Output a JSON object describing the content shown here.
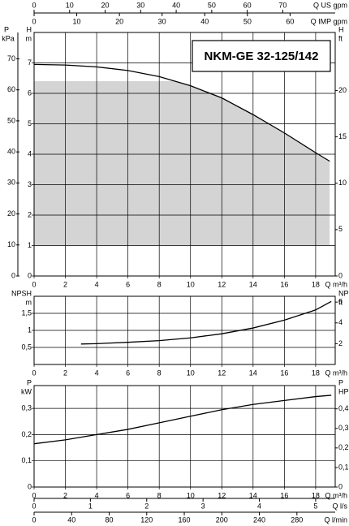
{
  "chart_data": [
    {
      "type": "line",
      "title": "NKM-GE 32-125/142",
      "x_label": "Q m³/h",
      "xlim": [
        0,
        19.25
      ],
      "xticks": [
        0,
        2,
        4,
        6,
        8,
        10,
        12,
        14,
        16,
        18
      ],
      "y_label": "H",
      "y_unit": "m",
      "ylim": [
        0,
        8
      ],
      "yticks": [
        0,
        1,
        2,
        3,
        4,
        5,
        6,
        7
      ],
      "y2_label": "H",
      "y2_unit": "ft",
      "y2lim": [
        0,
        26.25
      ],
      "y2ticks": [
        0,
        5,
        10,
        15,
        20
      ],
      "y3_label": "P",
      "y3_unit": "kPa",
      "y3lim": [
        0,
        78.5
      ],
      "y3ticks": [
        0,
        10,
        20,
        30,
        40,
        50,
        60,
        70
      ],
      "x": [
        0,
        2,
        4,
        6,
        8,
        10,
        12,
        14,
        16,
        18,
        18.9
      ],
      "series": [
        {
          "color": "#000000",
          "values": [
            6.95,
            6.93,
            6.87,
            6.75,
            6.55,
            6.25,
            5.85,
            5.3,
            4.7,
            4.05,
            3.77
          ]
        }
      ],
      "shaded_region": {
        "x": [
          0,
          18.9
        ],
        "y": [
          1,
          6.4
        ],
        "color": "#d4d4d4"
      },
      "x2_axes": [
        {
          "label": "Q US gpm",
          "lim": [
            0,
            84.76
          ],
          "ticks": [
            0,
            10,
            20,
            30,
            40,
            50,
            60,
            70
          ]
        },
        {
          "label": "Q IMP gpm",
          "lim": [
            0,
            70.58
          ],
          "ticks": [
            0,
            10,
            20,
            30,
            40,
            50,
            60
          ]
        }
      ]
    },
    {
      "type": "line",
      "x_label": "Q m³/h",
      "xlim": [
        0,
        19.25
      ],
      "xticks": [
        0,
        2,
        4,
        6,
        8,
        10,
        12,
        14,
        16,
        18
      ],
      "y_label": "NPSH",
      "y_unit": "m",
      "ylim": [
        0,
        2
      ],
      "yticks": [
        {
          "value": 0.5,
          "label": "0,5"
        },
        1,
        {
          "value": 1.5,
          "label": "1,5"
        }
      ],
      "y2_label": "NPSH",
      "y2_unit": "ft",
      "y2lim": [
        0,
        6.56
      ],
      "y2ticks": [
        2,
        4,
        6
      ],
      "x": [
        3,
        4,
        6,
        8,
        10,
        12,
        14,
        16,
        18,
        19
      ],
      "series": [
        {
          "color": "#000000",
          "values": [
            0.6,
            0.61,
            0.65,
            0.7,
            0.78,
            0.9,
            1.07,
            1.3,
            1.6,
            1.85
          ]
        }
      ]
    },
    {
      "type": "line",
      "x_label": "Q m³/h",
      "xlim": [
        0,
        19.25
      ],
      "xticks": [
        0,
        2,
        4,
        6,
        8,
        10,
        12,
        14,
        16,
        18
      ],
      "y_label": "P",
      "y_unit": "kW",
      "ylim": [
        0,
        0.387
      ],
      "yticks": [
        0,
        {
          "value": 0.1,
          "label": "0,1"
        },
        {
          "value": 0.2,
          "label": "0,2"
        },
        {
          "value": 0.3,
          "label": "0,3"
        }
      ],
      "y2_label": "P",
      "y2_unit": "HP",
      "y2lim": [
        0,
        0.519
      ],
      "y2ticks": [
        0,
        {
          "value": 0.1,
          "label": "0,1"
        },
        {
          "value": 0.2,
          "label": "0,2"
        },
        {
          "value": 0.3,
          "label": "0,3"
        },
        {
          "value": 0.4,
          "label": "0,4"
        }
      ],
      "x": [
        0,
        2,
        4,
        6,
        8,
        10,
        12,
        14,
        16,
        18,
        19
      ],
      "series": [
        {
          "color": "#000000",
          "values": [
            0.165,
            0.18,
            0.2,
            0.22,
            0.245,
            0.27,
            0.295,
            0.315,
            0.33,
            0.345,
            0.35
          ]
        }
      ],
      "x2_axes": [
        {
          "label": "Q l/s",
          "lim": [
            0,
            5.347
          ],
          "ticks": [
            0,
            1,
            2,
            3,
            4,
            5
          ]
        },
        {
          "label": "Q l/min",
          "lim": [
            0,
            320.8
          ],
          "ticks": [
            0,
            40,
            80,
            120,
            160,
            200,
            240,
            280
          ]
        }
      ]
    }
  ]
}
